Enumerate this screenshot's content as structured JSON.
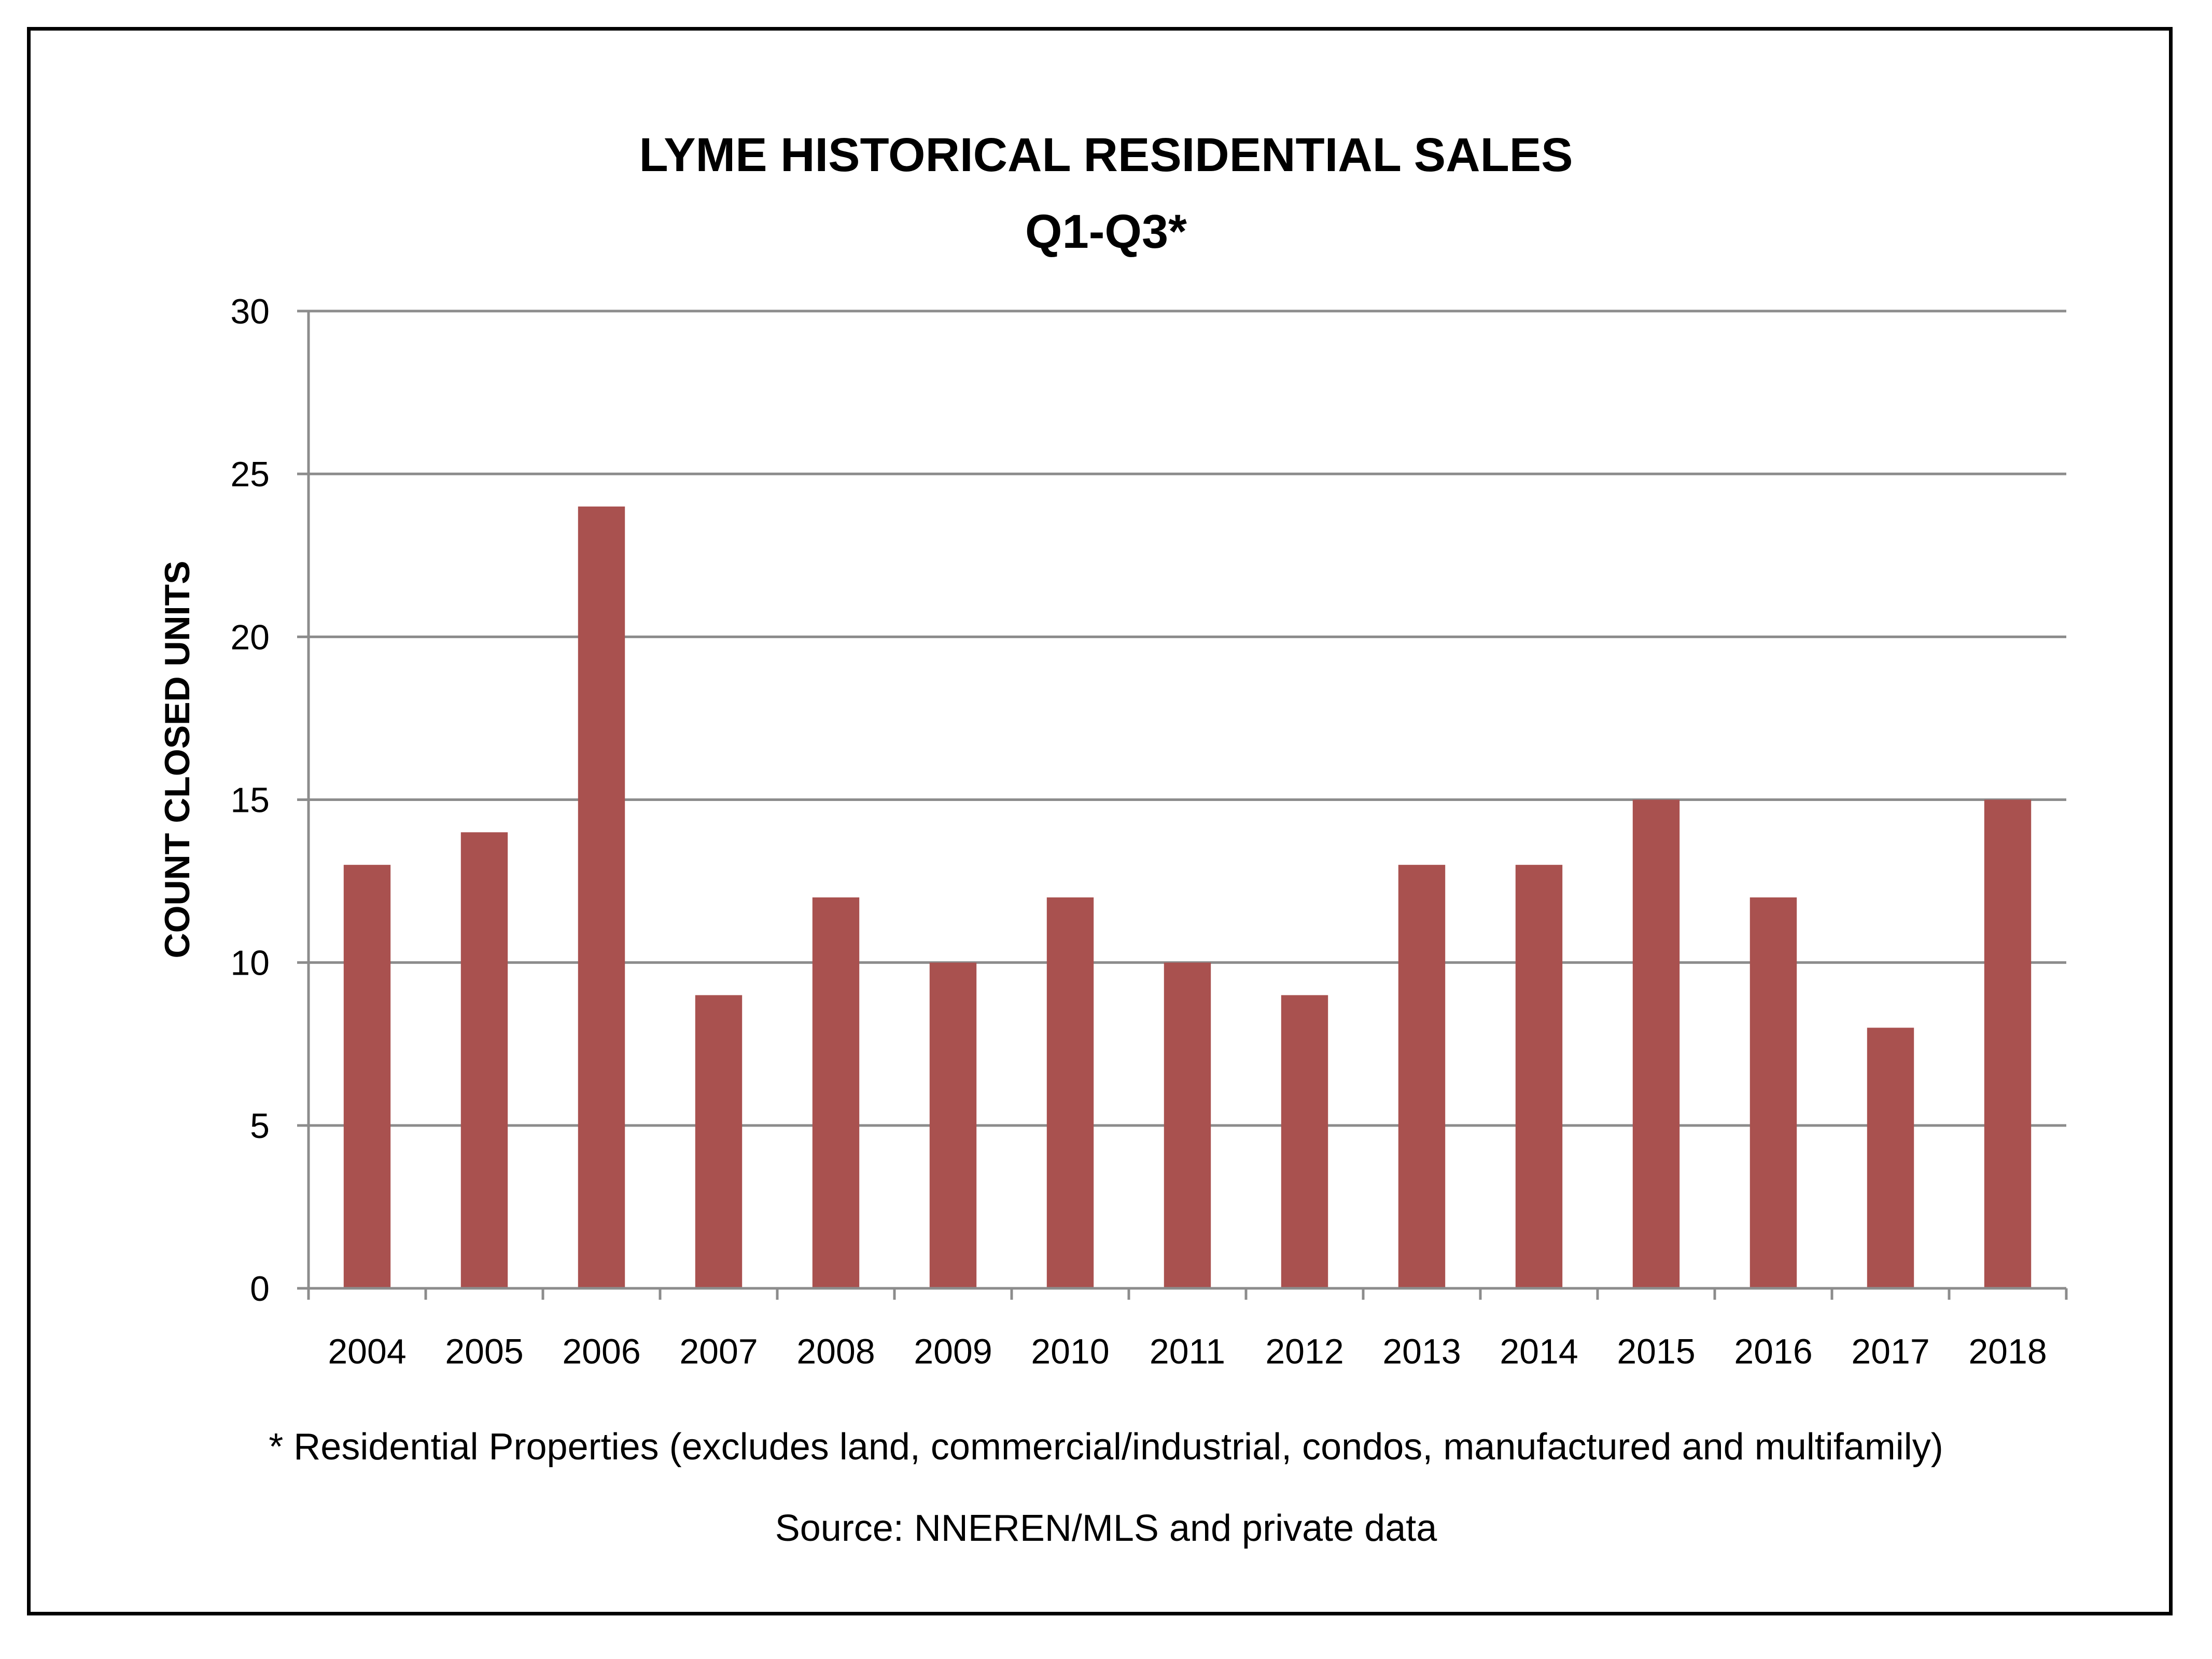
{
  "chart_data": {
    "type": "bar",
    "title": "LYME HISTORICAL RESIDENTIAL SALES",
    "subtitle": "Q1-Q3*",
    "xlabel": "",
    "ylabel": "COUNT CLOSED UNITS",
    "categories": [
      "2004",
      "2005",
      "2006",
      "2007",
      "2008",
      "2009",
      "2010",
      "2011",
      "2012",
      "2013",
      "2014",
      "2015",
      "2016",
      "2017",
      "2018"
    ],
    "values": [
      13,
      14,
      24,
      9,
      12,
      10,
      12,
      10,
      9,
      13,
      13,
      15,
      12,
      8,
      15
    ],
    "ylim": [
      0,
      30
    ],
    "yticks": [
      "0",
      "5",
      "10",
      "15",
      "20",
      "25",
      "30"
    ],
    "grid": true,
    "legend": "none",
    "bar_color": "#a9514f",
    "grid_color": "#8c8c8c"
  },
  "notes": {
    "footnote": "* Residential Properties (excludes land, commercial/industrial, condos, manufactured and multifamily)",
    "source": "Source: NNEREN/MLS and private data"
  }
}
